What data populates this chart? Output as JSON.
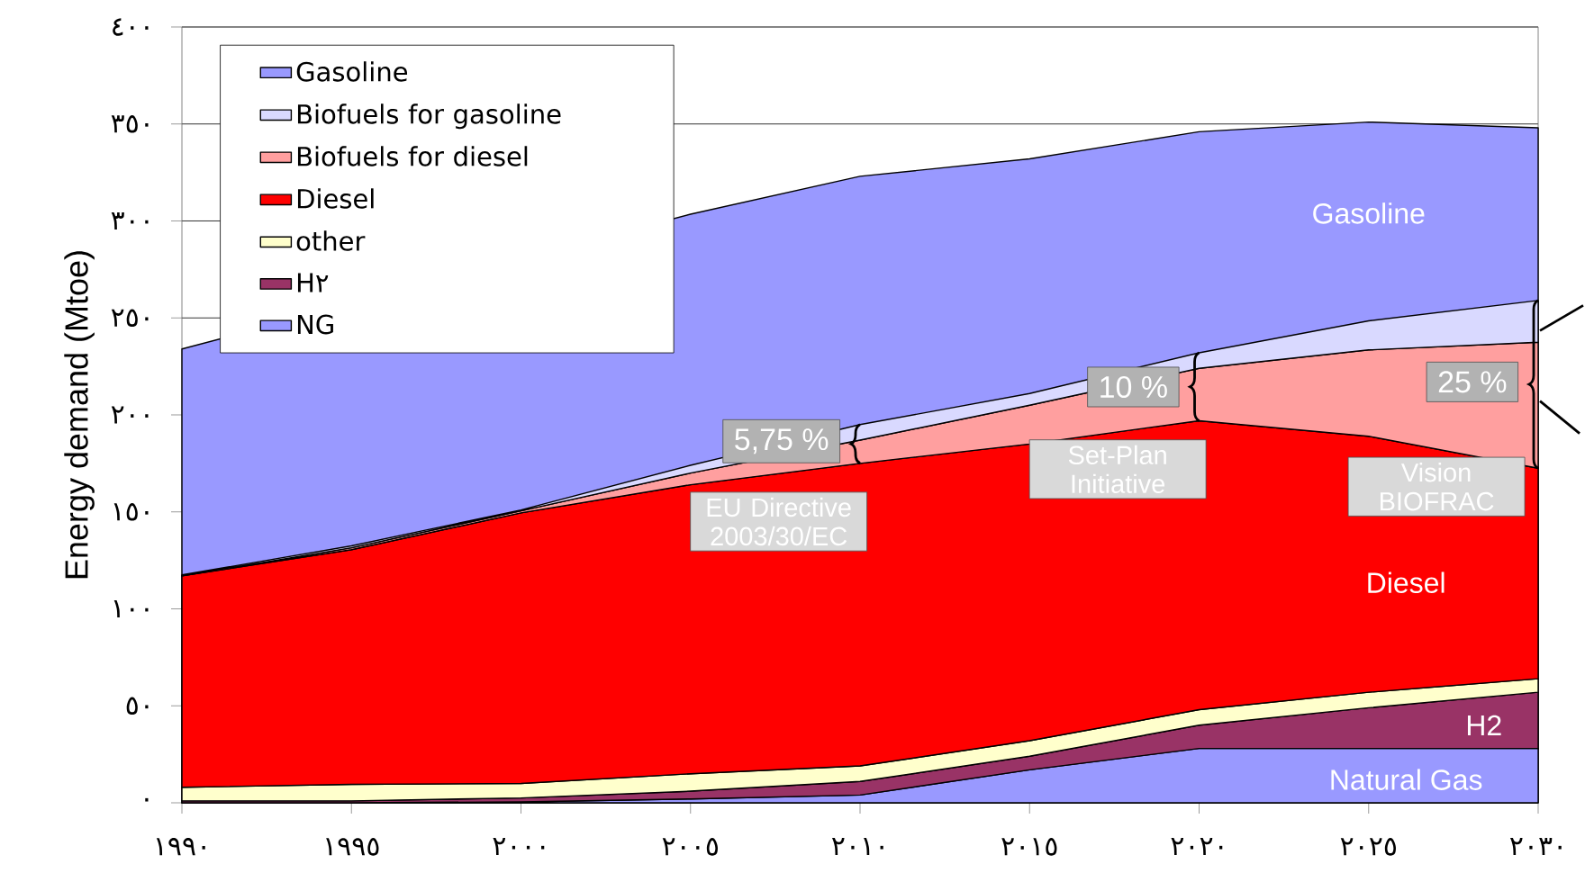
{
  "chart_data": {
    "type": "area",
    "stacked": true,
    "ylabel": "Energy demand (Mtoe)",
    "x": [
      1990,
      1995,
      2000,
      2005,
      2010,
      2015,
      2020,
      2025,
      2030
    ],
    "xlim": [
      1990,
      2030
    ],
    "ylim": [
      0,
      400
    ],
    "xticks": [
      {
        "value": 1990,
        "label": "١٩٩٠"
      },
      {
        "value": 1995,
        "label": "١٩٩٥"
      },
      {
        "value": 2000,
        "label": "٢٠٠٠"
      },
      {
        "value": 2005,
        "label": "٢٠٠٥"
      },
      {
        "value": 2010,
        "label": "٢٠١٠"
      },
      {
        "value": 2015,
        "label": "٢٠١٥"
      },
      {
        "value": 2020,
        "label": "٢٠٢٠"
      },
      {
        "value": 2025,
        "label": "٢٠٢٥"
      },
      {
        "value": 2030,
        "label": "٢٠٣٠"
      }
    ],
    "yticks": [
      {
        "value": 0,
        "label": "٠"
      },
      {
        "value": 50,
        "label": "٥٠"
      },
      {
        "value": 100,
        "label": "١٠٠"
      },
      {
        "value": 150,
        "label": "١٥٠"
      },
      {
        "value": 200,
        "label": "٢٠٠"
      },
      {
        "value": 250,
        "label": "٢٥٠"
      },
      {
        "value": 300,
        "label": "٣٠٠"
      },
      {
        "value": 350,
        "label": "٣٥٠"
      },
      {
        "value": 400,
        "label": "٤٠٠"
      }
    ],
    "grid": "y",
    "legend": "top left",
    "series": [
      {
        "name": "NG",
        "color": "#9999ff",
        "values": [
          0,
          0,
          0.5,
          2,
          4,
          17,
          28,
          28,
          28
        ]
      },
      {
        "name": "H٢",
        "color": "#993366",
        "values": [
          1,
          1,
          2,
          4,
          7,
          7,
          12,
          21,
          29
        ]
      },
      {
        "name": "other",
        "color": "#ffffcc",
        "values": [
          7,
          8.5,
          7.5,
          9,
          8,
          8,
          8,
          8,
          7
        ]
      },
      {
        "name": "Diesel",
        "color": "#ff0000",
        "values": [
          109,
          121,
          139.5,
          149,
          156,
          153,
          149,
          132,
          108.5
        ]
      },
      {
        "name": "Biofuels for diesel",
        "color": "#ff9f9f",
        "values": [
          0,
          1,
          1,
          6,
          12,
          20,
          27,
          44.5,
          65
        ]
      },
      {
        "name": "Biofuels for gasoline",
        "color": "#d9d9ff",
        "values": [
          0.5,
          1,
          0.5,
          4,
          8,
          6,
          8,
          15,
          21.5
        ]
      },
      {
        "name": "Gasoline",
        "color": "#9999ff",
        "values": [
          116.5,
          null,
          null,
          129.5,
          128,
          121,
          114,
          102.5,
          89
        ]
      }
    ],
    "annotations": [
      "Gasoline",
      "Diesel",
      "H2",
      "Natural Gas",
      "5,75 %",
      "10 %",
      "25 %",
      "EU Directive 2003/30/EC",
      "Set-Plan Initiative",
      "Vision BIOFRAC"
    ]
  }
}
